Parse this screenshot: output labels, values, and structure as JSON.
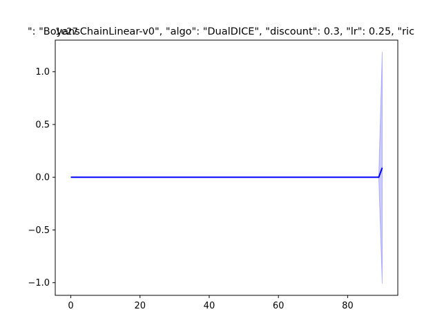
{
  "chart_data": {
    "type": "line",
    "title": "\": \"BoyansChainLinear-v0\", \"algo\": \"DualDICE\", \"discount\": 0.3, \"lr\": 0.25, \"ric",
    "xlabel": "",
    "ylabel": "",
    "y_offset_label": "1e27",
    "xlim": [
      -4.5,
      94.5
    ],
    "ylim": [
      -1.12,
      1.3
    ],
    "x_ticks": [
      0,
      20,
      40,
      60,
      80
    ],
    "x_tick_labels": [
      "0",
      "20",
      "40",
      "60",
      "80"
    ],
    "y_ticks": [
      -1.0,
      -0.5,
      0.0,
      0.5,
      1.0
    ],
    "y_tick_labels": [
      "−1.0",
      "−0.5",
      "0.0",
      "0.5",
      "1.0"
    ],
    "grid": false,
    "series": [
      {
        "color": "#0000ff",
        "band_color": "#0000ff",
        "x": [
          0,
          10,
          20,
          30,
          40,
          50,
          60,
          70,
          80,
          89,
          90
        ],
        "y": [
          0,
          0,
          0,
          0,
          0,
          0,
          0,
          0,
          0,
          0,
          0.09
        ],
        "y_lower": [
          0,
          0,
          0,
          0,
          0,
          0,
          0,
          0,
          0,
          0,
          -1.01
        ],
        "y_upper": [
          0,
          0,
          0,
          0,
          0,
          0,
          0,
          0,
          0,
          0,
          1.19
        ]
      }
    ]
  }
}
